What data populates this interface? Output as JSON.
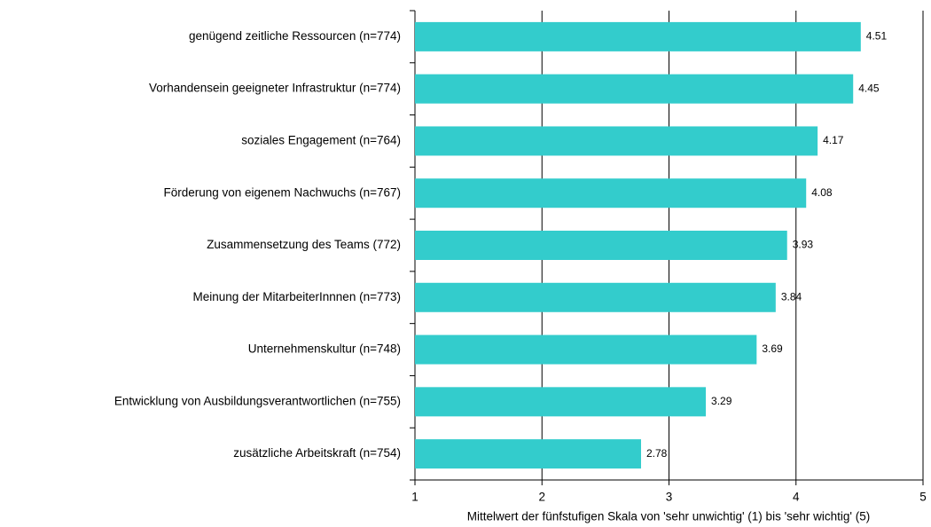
{
  "chart_data": {
    "type": "barh",
    "categories": [
      "genügend zeitliche Ressourcen (n=774)",
      "Vorhandensein geeigneter Infrastruktur (n=774)",
      "soziales Engagement (n=764)",
      "Förderung von eigenem Nachwuchs (n=767)",
      "Zusammensetzung des Teams (772)",
      "Meinung der MitarbeiterInnnen (n=773)",
      "Unternehmenskultur (n=748)",
      "Entwicklung von Ausbildungsverantwortlichen (n=755)",
      "zusätzliche Arbeitskraft (n=754)"
    ],
    "values": [
      4.51,
      4.45,
      4.17,
      4.08,
      3.93,
      3.84,
      3.69,
      3.29,
      2.78
    ],
    "color": "#33cccc",
    "xlim": [
      1,
      5
    ],
    "xticks": [
      1,
      2,
      3,
      4,
      5
    ],
    "grid": true,
    "x_label": "Mittelwert der fünfstufigen Skala von 'sehr unwichtig' (1) bis 'sehr wichtig' (5)"
  }
}
